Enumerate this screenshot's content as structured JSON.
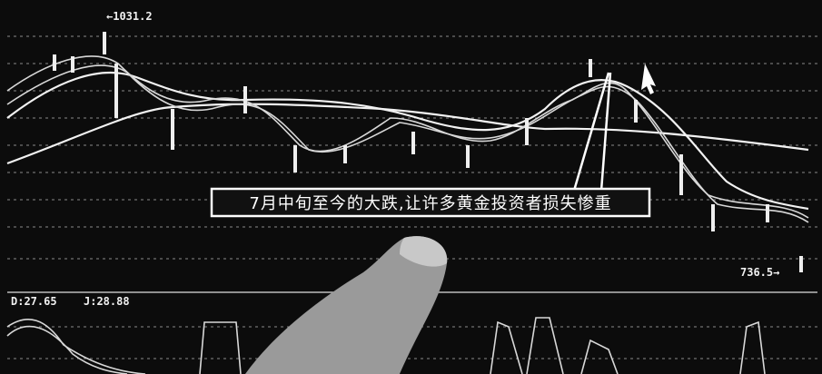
{
  "annotations": {
    "high": "←1031.2",
    "low": "736.5→",
    "caption": "7月中旬至今的大跌,让许多黄金投资者损失惨重",
    "indicator_d": "D:27.65",
    "indicator_j": "J:28.88"
  }
}
